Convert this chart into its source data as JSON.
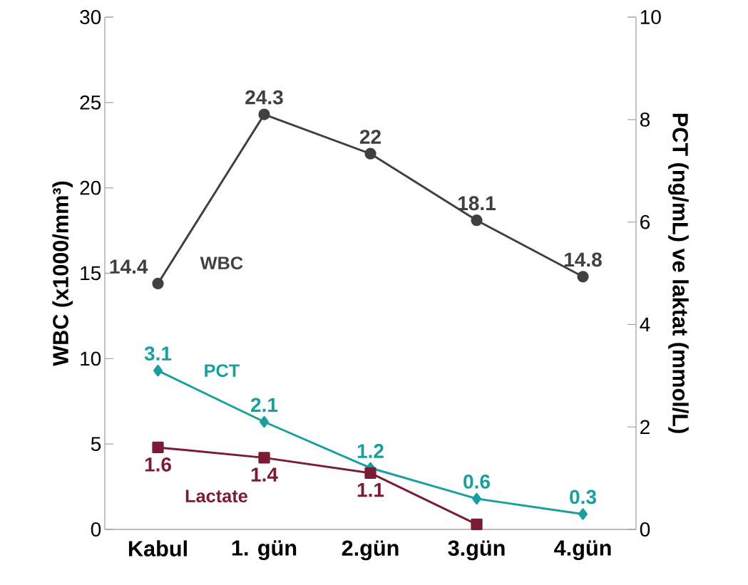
{
  "chart_data": {
    "type": "line",
    "ylabel": "WBC (x1000/mm³)",
    "y2label": "PCT (ng/mL) ve laktat (mmol/L)",
    "categories": [
      "Kabul",
      "1. gün",
      "2.gün",
      "3.gün",
      "4.gün"
    ],
    "ylim": [
      0,
      30
    ],
    "yticks": [
      0,
      5,
      10,
      15,
      20,
      25,
      30
    ],
    "y2lim": [
      0,
      10
    ],
    "y2ticks": [
      0,
      2,
      4,
      6,
      8,
      10
    ],
    "series": [
      {
        "name": "WBC",
        "color": "#404040",
        "marker": "circle",
        "values": [
          14.4,
          24.3,
          22,
          18.1,
          14.8
        ],
        "value_labels": [
          "14.4",
          "24.3",
          "22",
          "18.1",
          "14.8"
        ]
      },
      {
        "name": "PCT",
        "color": "#1a9e9e",
        "marker": "diamond",
        "axis": "y2",
        "values": [
          3.1,
          2.1,
          1.2,
          0.6,
          0.3
        ],
        "value_labels": [
          "3.1",
          "2.1",
          "1.2",
          "0.6",
          "0.3"
        ]
      },
      {
        "name": "Lactate",
        "color": "#7b1c35",
        "marker": "square",
        "axis": "y2",
        "values": [
          1.6,
          1.4,
          1.1,
          0.1,
          null
        ],
        "value_labels": [
          "1.6",
          "1.4",
          "1.1",
          null,
          null
        ]
      }
    ],
    "grid": false,
    "line_style": "solid"
  }
}
